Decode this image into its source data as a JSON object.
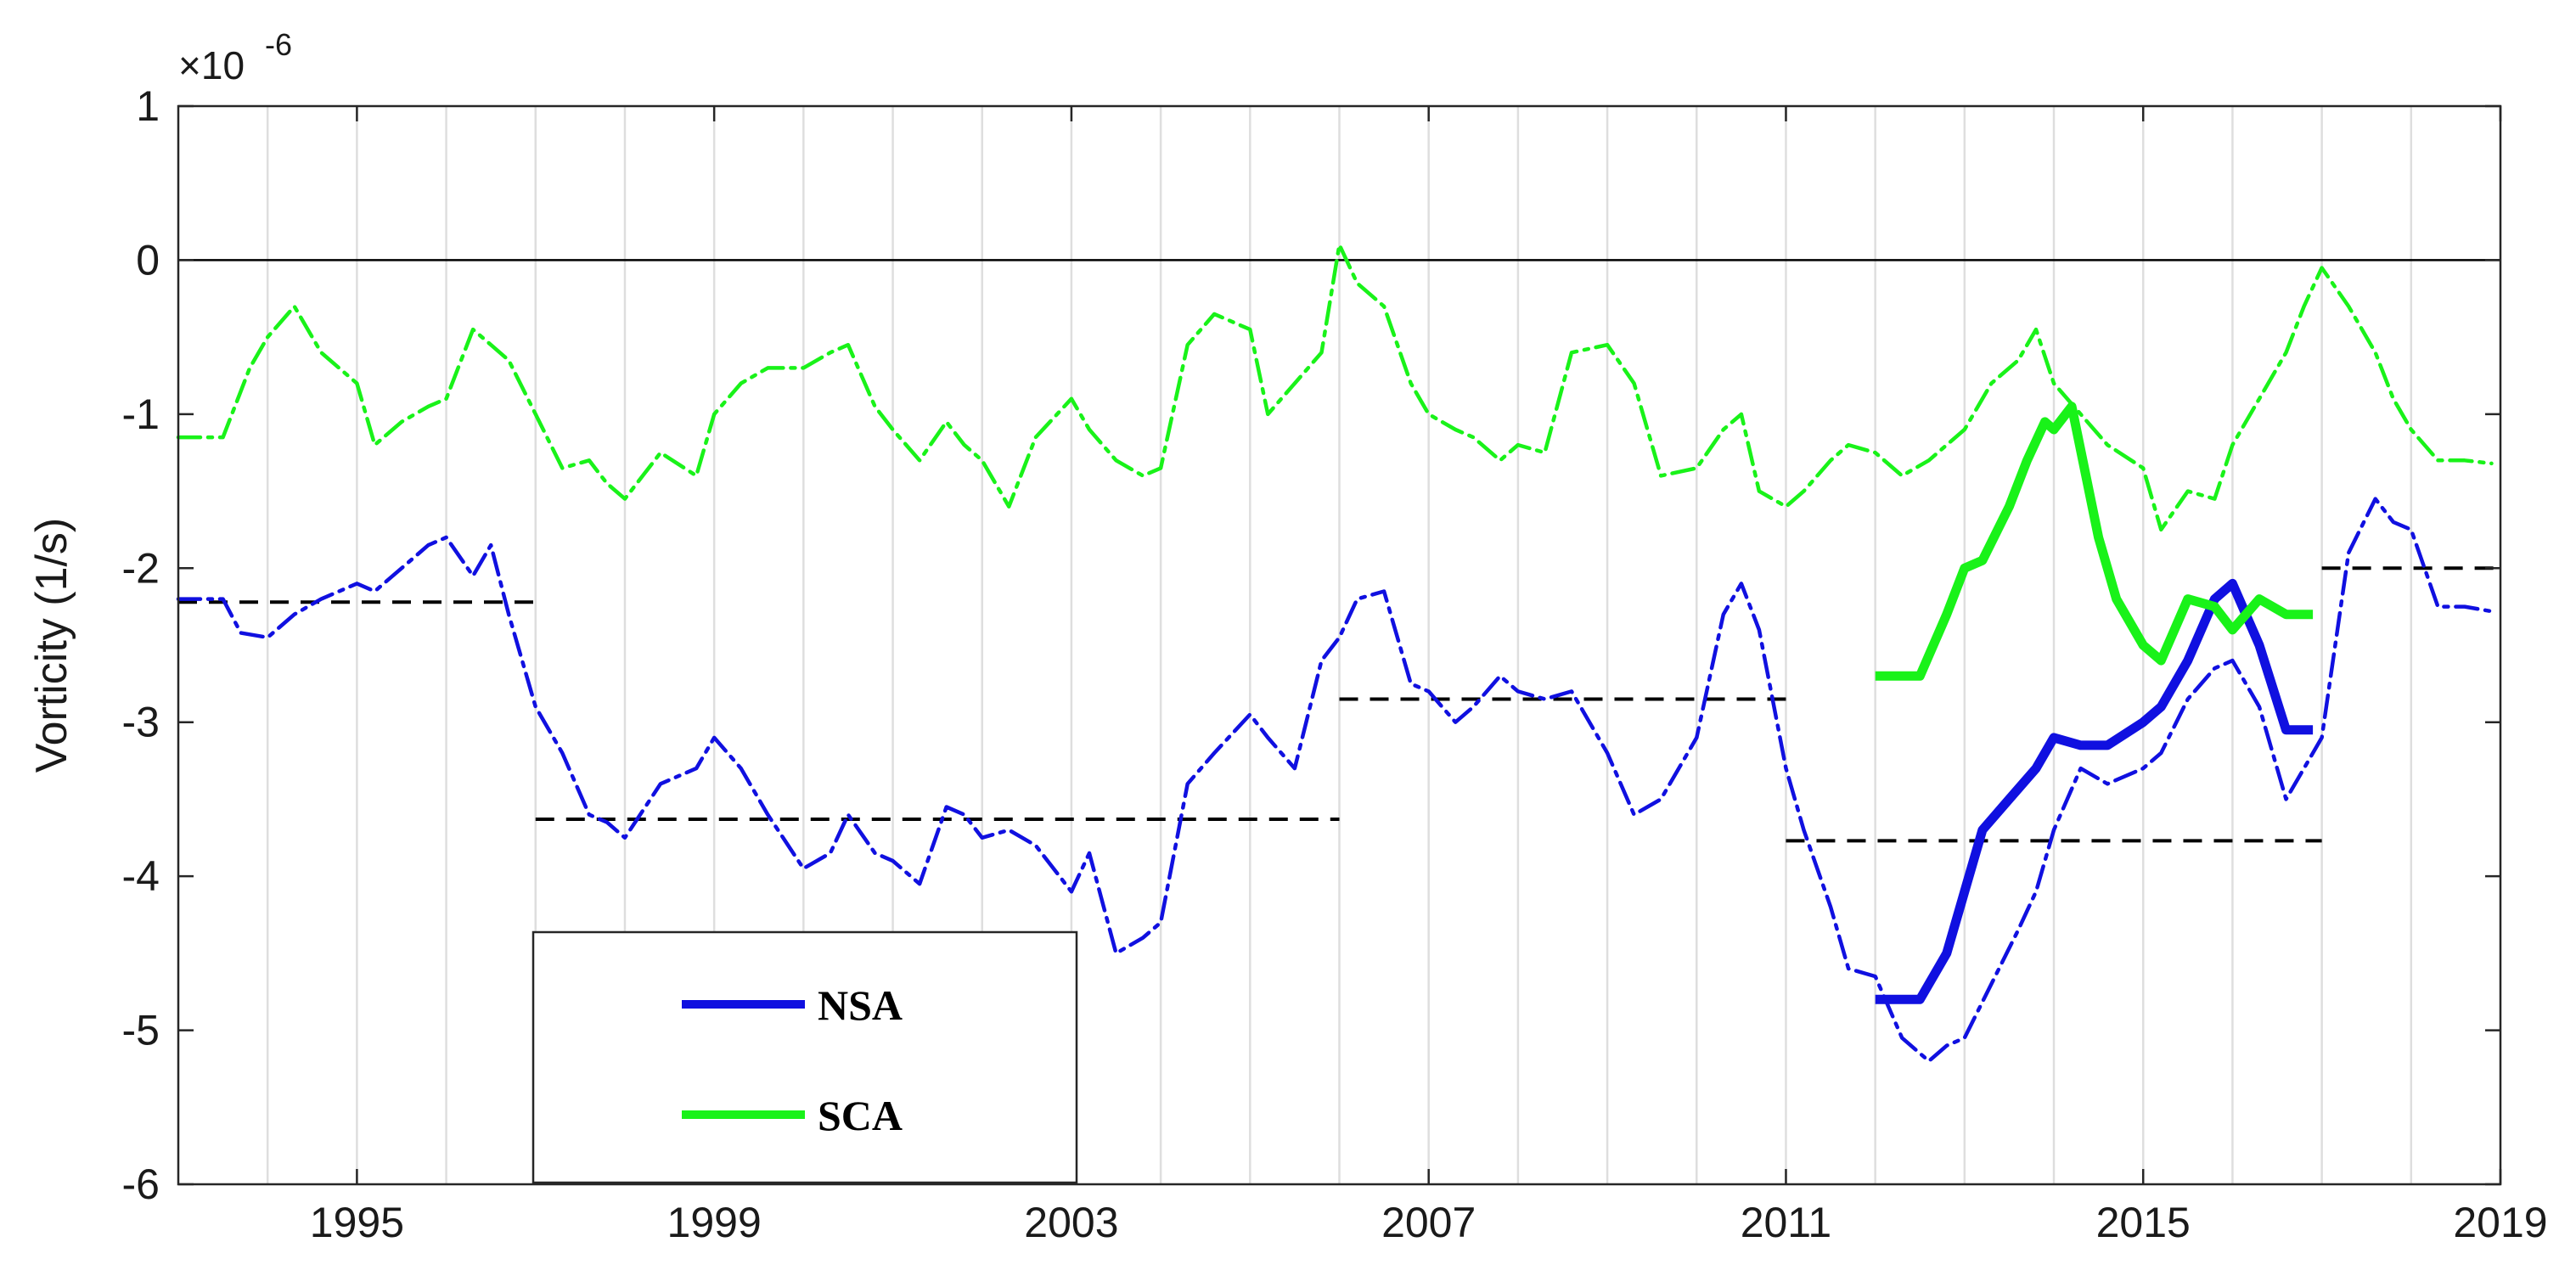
{
  "chart_data": {
    "type": "line",
    "title": "",
    "xlabel": "",
    "ylabel": "Vorticity (1/s)",
    "y_multiplier_base": "×10",
    "y_multiplier_exp": "-6",
    "xlim": [
      1993.0,
      2019.0
    ],
    "ylim": [
      -6,
      1
    ],
    "xticks": [
      1995,
      1999,
      2003,
      2007,
      2011,
      2015,
      2019
    ],
    "xtick_labels": [
      "1995",
      "1999",
      "2003",
      "2007",
      "2011",
      "2015",
      "2019"
    ],
    "yticks": [
      -6,
      -5,
      -4,
      -3,
      -2,
      -1,
      0,
      1
    ],
    "ytick_labels": [
      "-6",
      "-5",
      "-4",
      "-3",
      "-2",
      "-1",
      "0",
      "1"
    ],
    "grid": "vertical-yearly",
    "zero_line": true,
    "legend_position": "lower-left",
    "legend": [
      {
        "label": "NSA",
        "color": "#1010e0"
      },
      {
        "label": "SCA",
        "color": "#19f219"
      }
    ],
    "series": [
      {
        "name": "NSA",
        "style": "dash-dot",
        "color": "#1010e0",
        "x": [
          1993.0,
          1993.5,
          1993.7,
          1994.0,
          1994.3,
          1994.6,
          1995.0,
          1995.2,
          1995.5,
          1995.8,
          1996.0,
          1996.3,
          1996.5,
          1996.7,
          1997.0,
          1997.3,
          1997.6,
          1997.8,
          1998.0,
          1998.4,
          1998.8,
          1999.0,
          1999.3,
          1999.6,
          2000.0,
          2000.3,
          2000.5,
          2000.8,
          2001.0,
          2001.3,
          2001.6,
          2001.8,
          2002.0,
          2002.3,
          2002.6,
          2003.0,
          2003.2,
          2003.5,
          2003.8,
          2004.0,
          2004.3,
          2004.6,
          2005.0,
          2005.2,
          2005.5,
          2005.8,
          2006.0,
          2006.2,
          2006.5,
          2006.8,
          2007.0,
          2007.3,
          2007.5,
          2007.8,
          2008.0,
          2008.3,
          2008.6,
          2009.0,
          2009.3,
          2009.6,
          2010.0,
          2010.3,
          2010.5,
          2010.7,
          2011.0,
          2011.2,
          2011.5,
          2011.7,
          2012.0,
          2012.3,
          2012.6,
          2012.8,
          2013.0,
          2013.3,
          2013.6,
          2013.8,
          2014.0,
          2014.3,
          2014.6,
          2015.0,
          2015.2,
          2015.5,
          2015.8,
          2016.0,
          2016.3,
          2016.6,
          2016.8,
          2017.0,
          2017.3,
          2017.6,
          2017.8,
          2018.0,
          2018.3,
          2018.6,
          2018.9
        ],
        "y": [
          -2.2,
          -2.2,
          -2.42,
          -2.45,
          -2.3,
          -2.2,
          -2.1,
          -2.15,
          -2.0,
          -1.85,
          -1.8,
          -2.05,
          -1.85,
          -2.3,
          -2.9,
          -3.2,
          -3.6,
          -3.65,
          -3.75,
          -3.4,
          -3.3,
          -3.1,
          -3.3,
          -3.6,
          -3.95,
          -3.85,
          -3.6,
          -3.85,
          -3.9,
          -4.05,
          -3.55,
          -3.6,
          -3.75,
          -3.7,
          -3.8,
          -4.1,
          -3.85,
          -4.5,
          -4.4,
          -4.3,
          -3.4,
          -3.2,
          -2.95,
          -3.1,
          -3.3,
          -2.6,
          -2.45,
          -2.2,
          -2.15,
          -2.75,
          -2.8,
          -3.0,
          -2.9,
          -2.7,
          -2.8,
          -2.85,
          -2.8,
          -3.2,
          -3.6,
          -3.5,
          -3.1,
          -2.3,
          -2.1,
          -2.4,
          -3.3,
          -3.7,
          -4.2,
          -4.6,
          -4.65,
          -5.05,
          -5.2,
          -5.1,
          -5.05,
          -4.7,
          -4.35,
          -4.1,
          -3.7,
          -3.3,
          -3.4,
          -3.3,
          -3.2,
          -2.85,
          -2.65,
          -2.6,
          -2.9,
          -3.5,
          -3.3,
          -3.1,
          -1.9,
          -1.55,
          -1.7,
          -1.75,
          -2.25,
          -2.25,
          -2.28
        ]
      },
      {
        "name": "SCA",
        "style": "dash-dot",
        "color": "#19f219",
        "x": [
          1993.0,
          1993.5,
          1993.8,
          1994.0,
          1994.3,
          1994.6,
          1995.0,
          1995.2,
          1995.5,
          1995.8,
          1996.0,
          1996.3,
          1996.5,
          1996.7,
          1997.0,
          1997.3,
          1997.6,
          1997.8,
          1998.0,
          1998.4,
          1998.8,
          1999.0,
          1999.3,
          1999.6,
          2000.0,
          2000.3,
          2000.5,
          2000.8,
          2001.0,
          2001.3,
          2001.6,
          2001.8,
          2002.0,
          2002.3,
          2002.6,
          2003.0,
          2003.2,
          2003.5,
          2003.8,
          2004.0,
          2004.3,
          2004.6,
          2005.0,
          2005.2,
          2005.5,
          2005.8,
          2006.0,
          2006.2,
          2006.5,
          2006.8,
          2007.0,
          2007.3,
          2007.5,
          2007.8,
          2008.0,
          2008.3,
          2008.6,
          2009.0,
          2009.3,
          2009.6,
          2010.0,
          2010.3,
          2010.5,
          2010.7,
          2011.0,
          2011.2,
          2011.5,
          2011.7,
          2012.0,
          2012.3,
          2012.6,
          2012.8,
          2013.0,
          2013.3,
          2013.6,
          2013.8,
          2014.0,
          2014.3,
          2014.6,
          2015.0,
          2015.2,
          2015.5,
          2015.8,
          2016.0,
          2016.3,
          2016.6,
          2016.8,
          2017.0,
          2017.3,
          2017.6,
          2017.8,
          2018.0,
          2018.3,
          2018.6,
          2018.9
        ],
        "y": [
          -1.15,
          -1.15,
          -0.7,
          -0.5,
          -0.3,
          -0.6,
          -0.8,
          -1.2,
          -1.05,
          -0.95,
          -0.9,
          -0.45,
          -0.55,
          -0.65,
          -1.0,
          -1.35,
          -1.3,
          -1.45,
          -1.55,
          -1.25,
          -1.4,
          -1.0,
          -0.8,
          -0.7,
          -0.7,
          -0.6,
          -0.55,
          -0.95,
          -1.1,
          -1.3,
          -1.05,
          -1.2,
          -1.3,
          -1.6,
          -1.15,
          -0.9,
          -1.1,
          -1.3,
          -1.4,
          -1.35,
          -0.55,
          -0.35,
          -0.45,
          -1.0,
          -0.8,
          -0.6,
          0.1,
          -0.15,
          -0.3,
          -0.8,
          -1.0,
          -1.1,
          -1.15,
          -1.3,
          -1.2,
          -1.25,
          -0.6,
          -0.55,
          -0.8,
          -1.4,
          -1.35,
          -1.1,
          -1.0,
          -1.5,
          -1.6,
          -1.5,
          -1.3,
          -1.2,
          -1.25,
          -1.4,
          -1.3,
          -1.2,
          -1.1,
          -0.8,
          -0.65,
          -0.45,
          -0.8,
          -1.0,
          -1.2,
          -1.35,
          -1.75,
          -1.5,
          -1.55,
          -1.2,
          -0.9,
          -0.6,
          -0.3,
          -0.05,
          -0.3,
          -0.6,
          -0.9,
          -1.1,
          -1.3,
          -1.3,
          -1.32
        ]
      },
      {
        "name": "NSA",
        "style": "solid-thick",
        "color": "#1010e0",
        "x": [
          2012.0,
          2012.3,
          2012.5,
          2012.8,
          2013.0,
          2013.2,
          2013.5,
          2013.8,
          2014.0,
          2014.3,
          2014.6,
          2015.0,
          2015.2,
          2015.5,
          2015.8,
          2016.0,
          2016.3,
          2016.6,
          2016.9
        ],
        "y": [
          -4.8,
          -4.8,
          -4.8,
          -4.5,
          -4.1,
          -3.7,
          -3.5,
          -3.3,
          -3.1,
          -3.15,
          -3.15,
          -3.0,
          -2.9,
          -2.6,
          -2.2,
          -2.1,
          -2.5,
          -3.05,
          -3.05
        ]
      },
      {
        "name": "SCA",
        "style": "solid-thick",
        "color": "#19f219",
        "x": [
          2012.0,
          2012.3,
          2012.5,
          2012.8,
          2013.0,
          2013.2,
          2013.5,
          2013.7,
          2013.9,
          2014.0,
          2014.2,
          2014.5,
          2014.7,
          2015.0,
          2015.2,
          2015.5,
          2015.8,
          2016.0,
          2016.3,
          2016.6,
          2016.9
        ],
        "y": [
          -2.7,
          -2.7,
          -2.7,
          -2.3,
          -2.0,
          -1.95,
          -1.6,
          -1.3,
          -1.05,
          -1.1,
          -0.95,
          -1.8,
          -2.2,
          -2.5,
          -2.6,
          -2.2,
          -2.25,
          -2.4,
          -2.2,
          -2.3,
          -2.3
        ]
      },
      {
        "name": "",
        "style": "dashed-mean",
        "color": "#000000",
        "segments": [
          {
            "x": [
              1993.0,
              1997.0
            ],
            "y": -2.22
          },
          {
            "x": [
              1997.0,
              2006.0
            ],
            "y": -3.63
          },
          {
            "x": [
              2006.0,
              2011.0
            ],
            "y": -2.85
          },
          {
            "x": [
              2011.0,
              2017.0
            ],
            "y": -3.77
          },
          {
            "x": [
              2017.0,
              2019.0
            ],
            "y": -2.0
          }
        ]
      }
    ]
  }
}
